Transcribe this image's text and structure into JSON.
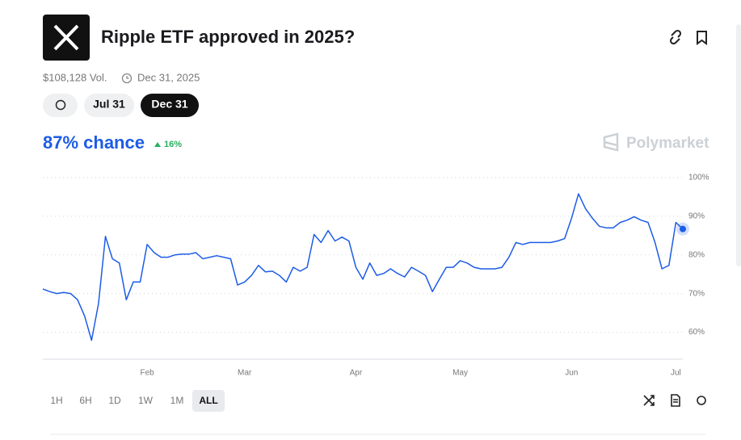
{
  "header": {
    "title": "Ripple ETF approved in 2025?",
    "volume": "$108,128 Vol.",
    "end_date": "Dec 31, 2025"
  },
  "tabs": [
    "Jul 31",
    "Dec 31"
  ],
  "chance": "87% chance",
  "change": "16%",
  "brand": "Polymarket",
  "ranges": [
    "1H",
    "6H",
    "1D",
    "1W",
    "1M",
    "ALL"
  ],
  "chart_data": {
    "type": "line",
    "color": "#1d5ce6",
    "grid": true,
    "ylim": [
      53,
      100
    ],
    "yticks": [
      {
        "value": 60,
        "label": "60%"
      },
      {
        "value": 70,
        "label": "70%"
      },
      {
        "value": 80,
        "label": "80%"
      },
      {
        "value": 90,
        "label": "90%"
      },
      {
        "value": 100,
        "label": "100%"
      }
    ],
    "categories": [
      null,
      null,
      null,
      null,
      null,
      null,
      null,
      null,
      null,
      null,
      null,
      null,
      null,
      null,
      null,
      "Feb",
      null,
      null,
      null,
      null,
      null,
      null,
      null,
      null,
      null,
      null,
      null,
      null,
      null,
      "Mar",
      null,
      null,
      null,
      null,
      null,
      null,
      null,
      null,
      null,
      null,
      null,
      null,
      null,
      null,
      null,
      "Apr",
      null,
      null,
      null,
      null,
      null,
      null,
      null,
      null,
      null,
      null,
      null,
      null,
      null,
      null,
      "May",
      null,
      null,
      null,
      null,
      null,
      null,
      null,
      null,
      null,
      null,
      null,
      null,
      null,
      null,
      null,
      "Jun",
      null,
      null,
      null,
      null,
      null,
      null,
      null,
      null,
      null,
      null,
      null,
      null,
      null,
      null,
      "Jul",
      null
    ],
    "values": [
      71.2,
      70.5,
      70,
      70.3,
      70,
      68.4,
      64.2,
      57.9,
      67.4,
      84.8,
      79,
      77.9,
      68.4,
      73,
      73,
      82.7,
      80.6,
      79.4,
      79.4,
      80,
      80.2,
      80.2,
      80.6,
      79,
      79.4,
      79.8,
      79.4,
      79,
      72.2,
      73,
      74.7,
      77.3,
      75.6,
      75.8,
      74.7,
      73,
      76.8,
      75.8,
      76.8,
      85.3,
      83.2,
      86.3,
      83.6,
      84.6,
      83.6,
      76.8,
      73.7,
      77.9,
      74.7,
      75.2,
      76.4,
      75.2,
      74.3,
      76.8,
      75.8,
      74.7,
      70.5,
      73.7,
      76.8,
      76.8,
      78.5,
      77.9,
      76.8,
      76.4,
      76.4,
      76.4,
      76.8,
      79.4,
      83.2,
      82.7,
      83.2,
      83.2,
      83.2,
      83.2,
      83.6,
      84.2,
      89.5,
      95.8,
      92,
      89.5,
      87.4,
      87,
      87,
      88.4,
      89,
      89.9,
      89,
      88.4,
      83.2,
      76.4,
      77.3,
      88.4,
      86.7
    ]
  }
}
